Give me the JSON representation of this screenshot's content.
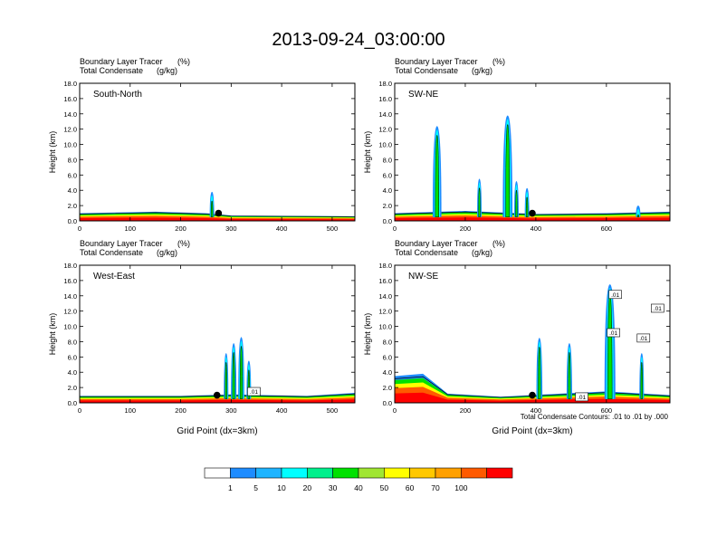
{
  "title": "2013-09-24_03:00:00",
  "panel_header": {
    "line1_name": "Boundary Layer Tracer",
    "line1_unit": "(%)",
    "line2_name": "Total Condensate",
    "line2_unit": "(g/kg)"
  },
  "footer": {
    "contour_info": "Total Condensate Contours: .01 to .01 by .000"
  },
  "colorbar": {
    "labels": [
      "1",
      "5",
      "10",
      "20",
      "30",
      "40",
      "50",
      "60",
      "70",
      "100"
    ],
    "colors": [
      "#ffffff",
      "#1e8cff",
      "#1eb4ff",
      "#00ffff",
      "#00f08c",
      "#00e100",
      "#a0e632",
      "#ffff00",
      "#ffc800",
      "#ffa000",
      "#ff5a00",
      "#ff0000"
    ]
  },
  "chart_data": [
    {
      "type": "contour-cross-section",
      "label": "South-North",
      "ylabel": "Height (km)",
      "xlabel": "",
      "xlim": [
        0,
        545
      ],
      "ylim": [
        0,
        18
      ],
      "xticks": [
        "0",
        "100",
        "200",
        "300",
        "400",
        "500"
      ],
      "yticks": [
        "0.0",
        "2.0",
        "4.0",
        "6.0",
        "8.0",
        "10.0",
        "12.0",
        "14.0",
        "16.0",
        "18.0"
      ],
      "marker_x": 275,
      "tracer_layer_tops_km": [
        [
          0,
          1.0
        ],
        [
          150,
          1.2
        ],
        [
          250,
          1.0
        ],
        [
          300,
          0.7
        ],
        [
          545,
          0.6
        ]
      ],
      "cloud_plumes": [
        {
          "x": 262,
          "top_km": 3.8
        }
      ],
      "contour_labels": []
    },
    {
      "type": "contour-cross-section",
      "label": "SW-NE",
      "ylabel": "Height (km)",
      "xlabel": "",
      "xlim": [
        0,
        780
      ],
      "ylim": [
        0,
        18
      ],
      "xticks": [
        "0",
        "200",
        "400",
        "600"
      ],
      "yticks": [
        "0.0",
        "2.0",
        "4.0",
        "6.0",
        "8.0",
        "10.0",
        "12.0",
        "14.0",
        "16.0",
        "18.0"
      ],
      "marker_x": 390,
      "tracer_layer_tops_km": [
        [
          0,
          1.0
        ],
        [
          200,
          1.3
        ],
        [
          400,
          0.9
        ],
        [
          600,
          1.0
        ],
        [
          780,
          1.2
        ]
      ],
      "cloud_plumes": [
        {
          "x": 115,
          "top_km": 4.5
        },
        {
          "x": 120,
          "top_km": 12.4
        },
        {
          "x": 240,
          "top_km": 5.5
        },
        {
          "x": 320,
          "top_km": 13.8
        },
        {
          "x": 345,
          "top_km": 5.2
        },
        {
          "x": 375,
          "top_km": 4.3
        },
        {
          "x": 690,
          "top_km": 2.0
        }
      ],
      "contour_labels": []
    },
    {
      "type": "contour-cross-section",
      "label": "West-East",
      "ylabel": "Height (km)",
      "xlabel": "Grid Point (dx=3km)",
      "xlim": [
        0,
        545
      ],
      "ylim": [
        0,
        18
      ],
      "xticks": [
        "0",
        "100",
        "200",
        "300",
        "400",
        "500"
      ],
      "yticks": [
        "0.0",
        "2.0",
        "4.0",
        "6.0",
        "8.0",
        "10.0",
        "12.0",
        "14.0",
        "16.0",
        "18.0"
      ],
      "marker_x": 272,
      "tracer_layer_tops_km": [
        [
          0,
          0.9
        ],
        [
          200,
          0.9
        ],
        [
          300,
          1.1
        ],
        [
          450,
          0.9
        ],
        [
          545,
          1.3
        ]
      ],
      "cloud_plumes": [
        {
          "x": 290,
          "top_km": 6.5
        },
        {
          "x": 305,
          "top_km": 7.8
        },
        {
          "x": 320,
          "top_km": 8.6
        },
        {
          "x": 335,
          "top_km": 5.5
        }
      ],
      "contour_labels": [
        {
          "x": 345,
          "y_km": 1.3,
          "text": ".01"
        }
      ]
    },
    {
      "type": "contour-cross-section",
      "label": "NW-SE",
      "ylabel": "Height (km)",
      "xlabel": "Grid Point (dx=3km)",
      "xlim": [
        0,
        780
      ],
      "ylim": [
        0,
        18
      ],
      "xticks": [
        "0",
        "200",
        "400",
        "600"
      ],
      "yticks": [
        "0.0",
        "2.0",
        "4.0",
        "6.0",
        "8.0",
        "10.0",
        "12.0",
        "14.0",
        "16.0",
        "18.0"
      ],
      "marker_x": 390,
      "tracer_layer_tops_km": [
        [
          0,
          3.5
        ],
        [
          80,
          3.8
        ],
        [
          150,
          1.2
        ],
        [
          300,
          0.8
        ],
        [
          600,
          1.5
        ],
        [
          780,
          1.0
        ]
      ],
      "cloud_plumes": [
        {
          "x": 410,
          "top_km": 8.5
        },
        {
          "x": 495,
          "top_km": 7.8
        },
        {
          "x": 610,
          "top_km": 15.5
        },
        {
          "x": 700,
          "top_km": 6.5
        }
      ],
      "contour_labels": [
        {
          "x": 625,
          "y_km": 14.0,
          "text": ".01"
        },
        {
          "x": 620,
          "y_km": 9.0,
          "text": ".01"
        },
        {
          "x": 745,
          "y_km": 12.2,
          "text": ".01"
        },
        {
          "x": 705,
          "y_km": 8.3,
          "text": ".01"
        },
        {
          "x": 530,
          "y_km": 0.6,
          "text": ".01"
        }
      ]
    }
  ]
}
